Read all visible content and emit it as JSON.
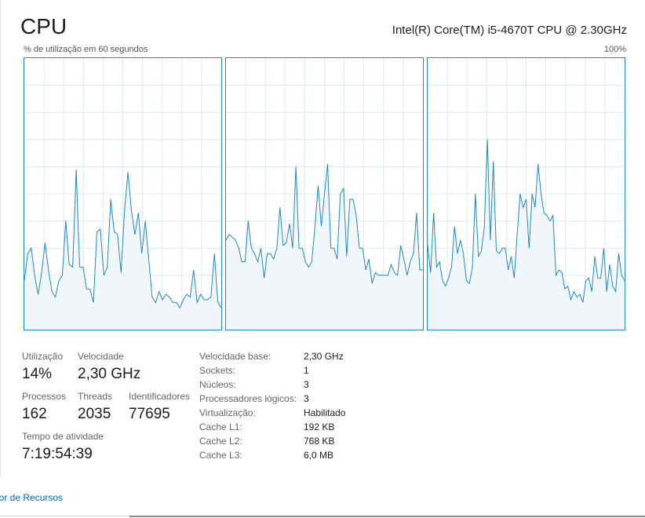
{
  "header": {
    "title": "CPU",
    "cpu_name": "Intel(R) Core(TM) i5-4670T CPU @ 2.30GHz",
    "util_label": "% de utilização em 60 segundos",
    "max_label": "100%"
  },
  "graph_colors": {
    "line": "#1f8ac0",
    "fill": "#f1f6fa",
    "grid": "#d9eaf4",
    "border": "#1f8ac0"
  },
  "chart_data": {
    "type": "area",
    "ylim": [
      0,
      100
    ],
    "series": [
      {
        "values": [
          18,
          28,
          30,
          20,
          13,
          21,
          32,
          22,
          14,
          12,
          18,
          20,
          40,
          24,
          23,
          59,
          23,
          23,
          15,
          15,
          10,
          36,
          37,
          20,
          23,
          48,
          36,
          35,
          21,
          44,
          58,
          44,
          35,
          43,
          28,
          40,
          26,
          12,
          10,
          14,
          11,
          13,
          12,
          10,
          10,
          8,
          11,
          13,
          12,
          22,
          10,
          13,
          11,
          11,
          12,
          28,
          10,
          8
        ]
      },
      {
        "values": [
          33,
          35,
          34,
          33,
          30,
          25,
          25,
          40,
          30,
          28,
          25,
          30,
          19,
          28,
          28,
          26,
          30,
          45,
          31,
          32,
          39,
          30,
          60,
          30,
          30,
          25,
          23,
          25,
          38,
          53,
          38,
          50,
          61,
          30,
          30,
          26,
          50,
          52,
          27,
          48,
          48,
          42,
          30,
          30,
          22,
          26,
          17,
          21,
          20,
          20,
          20,
          20,
          24,
          21,
          20,
          31,
          26,
          20,
          25,
          28,
          43,
          22,
          22
        ]
      },
      {
        "values": [
          31,
          21,
          43,
          23,
          25,
          18,
          16,
          19,
          23,
          38,
          28,
          33,
          28,
          18,
          17,
          23,
          50,
          27,
          29,
          38,
          70,
          33,
          62,
          29,
          28,
          30,
          30,
          22,
          27,
          19,
          35,
          50,
          45,
          48,
          30,
          50,
          45,
          61,
          50,
          43,
          42,
          40,
          42,
          20,
          22,
          21,
          15,
          16,
          11,
          14,
          12,
          13,
          10,
          18,
          19,
          14,
          27,
          19,
          19,
          30,
          14,
          24,
          16,
          14,
          28,
          20,
          18
        ]
      }
    ]
  },
  "stats": {
    "utilizacao": {
      "label": "Utilização",
      "value": "14%"
    },
    "velocidade": {
      "label": "Velocidade",
      "value": "2,30 GHz"
    },
    "processos": {
      "label": "Processos",
      "value": "162"
    },
    "threads": {
      "label": "Threads",
      "value": "2035"
    },
    "identificadores": {
      "label": "Identificadores",
      "value": "77695"
    },
    "tempo_atividade": {
      "label": "Tempo de atividade",
      "value": "7:19:54:39"
    }
  },
  "specs": {
    "base_speed": {
      "label": "Velocidade base:",
      "value": "2,30 GHz"
    },
    "sockets": {
      "label": "Sockets:",
      "value": "1"
    },
    "nucleos": {
      "label": "Núcleos:",
      "value": "3"
    },
    "logicos": {
      "label": "Processadores lógicos:",
      "value": "3"
    },
    "virtualizacao": {
      "label": "Virtualização:",
      "value": "Habilitado"
    },
    "cache_l1": {
      "label": "Cache L1:",
      "value": "192 KB"
    },
    "cache_l2": {
      "label": "Cache L2:",
      "value": "768 KB"
    },
    "cache_l3": {
      "label": "Cache L3:",
      "value": "6,0 MB"
    }
  },
  "footer": {
    "link": "nitor de Recursos"
  }
}
